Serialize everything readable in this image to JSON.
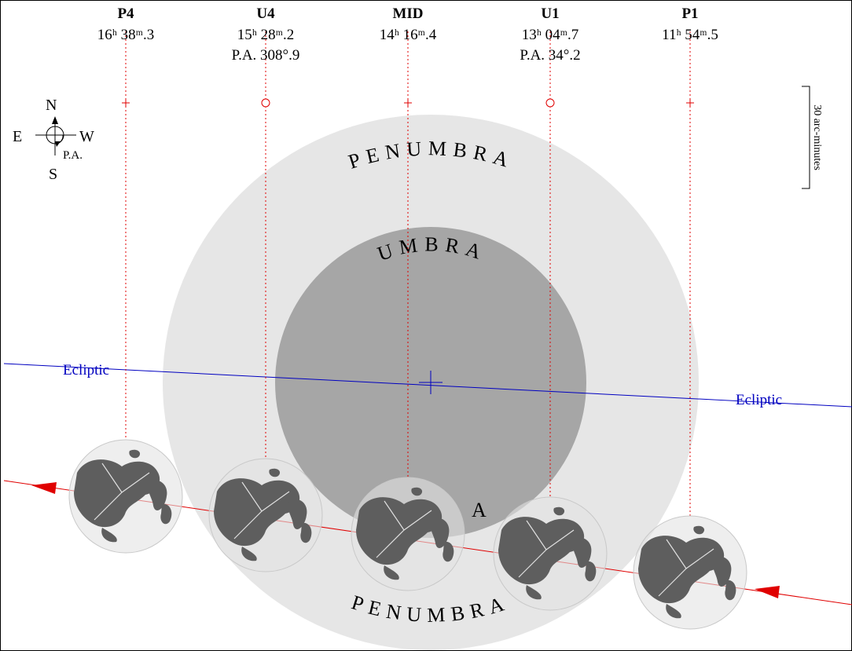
{
  "contacts": [
    {
      "name": "P4",
      "time": "16ʰ 38ᵐ.3"
    },
    {
      "name": "U4",
      "time": "15ʰ 28ᵐ.2",
      "pa": "P.A. 308°.9"
    },
    {
      "name": "MID",
      "time": "14ʰ 16ᵐ.4"
    },
    {
      "name": "U1",
      "time": "13ʰ 04ᵐ.7",
      "pa": "P.A. 34°.2"
    },
    {
      "name": "P1",
      "time": "11ʰ 54ᵐ.5"
    }
  ],
  "compass": {
    "north": "N",
    "east": "E",
    "west": "W",
    "south": "S",
    "position_angle": "P.A."
  },
  "scale": "30 arc-minutes",
  "shadow": {
    "penumbra_top": "PENUMBRA",
    "umbra": "UMBRA",
    "umbra_bottom": "A",
    "penumbra_bottom": "PENUMBRA"
  },
  "ecliptic": [
    "Ecliptic",
    "Ecliptic"
  ]
}
